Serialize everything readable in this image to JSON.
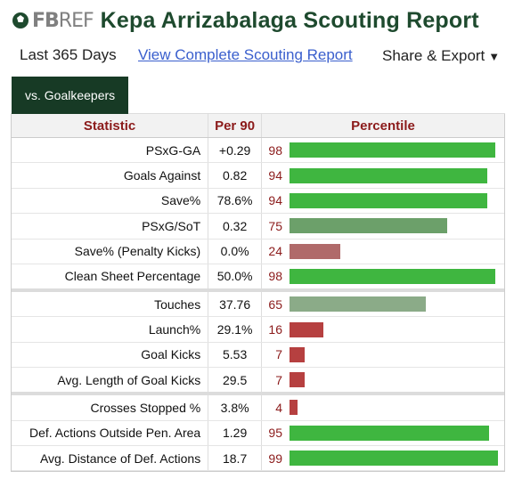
{
  "header": {
    "logo_fb": "FB",
    "logo_ref": "REF",
    "title": "Kepa Arrizabalaga Scouting Report"
  },
  "subbar": {
    "period": "Last 365 Days",
    "full_report_link": "View Complete Scouting Report",
    "share_label": "Share & Export",
    "share_icon": "caret-down-icon"
  },
  "tabs": [
    {
      "label": "vs. Goalkeepers",
      "active": true
    }
  ],
  "table": {
    "headers": {
      "statistic": "Statistic",
      "per90": "Per 90",
      "percentile": "Percentile"
    },
    "colors": {
      "high": "#3fb640",
      "mid_high": "#6ca06a",
      "mid": "#8bab88",
      "low": "#b06a6a",
      "very_low": "#b64040"
    },
    "groups": [
      {
        "rows": [
          {
            "stat": "PSxG-GA",
            "per90": "+0.29",
            "percentile": "98",
            "pct_value": 98,
            "color": "#3fb640"
          },
          {
            "stat": "Goals Against",
            "per90": "0.82",
            "percentile": "94",
            "pct_value": 94,
            "color": "#3fb640"
          },
          {
            "stat": "Save%",
            "per90": "78.6%",
            "percentile": "94",
            "pct_value": 94,
            "color": "#3fb640"
          },
          {
            "stat": "PSxG/SoT",
            "per90": "0.32",
            "percentile": "75",
            "pct_value": 75,
            "color": "#6ca06a"
          },
          {
            "stat": "Save% (Penalty Kicks)",
            "per90": "0.0%",
            "percentile": "24",
            "pct_value": 24,
            "color": "#b06a6a"
          },
          {
            "stat": "Clean Sheet Percentage",
            "per90": "50.0%",
            "percentile": "98",
            "pct_value": 98,
            "color": "#3fb640"
          }
        ]
      },
      {
        "rows": [
          {
            "stat": "Touches",
            "per90": "37.76",
            "percentile": "65",
            "pct_value": 65,
            "color": "#8bab88"
          },
          {
            "stat": "Launch%",
            "per90": "29.1%",
            "percentile": "16",
            "pct_value": 16,
            "color": "#b64040"
          },
          {
            "stat": "Goal Kicks",
            "per90": "5.53",
            "percentile": "7",
            "pct_value": 7,
            "color": "#b64040"
          },
          {
            "stat": "Avg. Length of Goal Kicks",
            "per90": "29.5",
            "percentile": "7",
            "pct_value": 7,
            "color": "#b64040"
          }
        ]
      },
      {
        "rows": [
          {
            "stat": "Crosses Stopped %",
            "per90": "3.8%",
            "percentile": "4",
            "pct_value": 4,
            "color": "#b64040"
          },
          {
            "stat": "Def. Actions Outside Pen. Area",
            "per90": "1.29",
            "percentile": "95",
            "pct_value": 95,
            "color": "#3fb640"
          },
          {
            "stat": "Avg. Distance of Def. Actions",
            "per90": "18.7",
            "percentile": "99",
            "pct_value": 99,
            "color": "#3fb640"
          }
        ]
      }
    ]
  }
}
